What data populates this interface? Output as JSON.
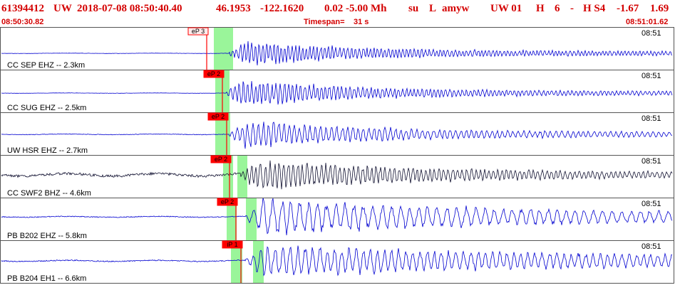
{
  "header": {
    "event_id": "61394412",
    "network": "UW",
    "origin_time": "2018-07-08 08:50:40.40",
    "latitude": "46.1953",
    "longitude": "-122.1620",
    "magnitude_info": "0.02 -5.00 Mh",
    "quality": "su",
    "type": "L",
    "author": "amyw",
    "version_info": "UW 01",
    "flag_h": "H",
    "count": "6",
    "dash": "-",
    "source": "H S4",
    "value1": "-1.67",
    "value2": "1.69"
  },
  "subheader": {
    "start_time": "08:50:30.82",
    "timespan_label": "Timespan=",
    "timespan_value": "31 s",
    "end_time": "08:51:01.62"
  },
  "colors": {
    "header_red": "#d40000",
    "trace_blue": "#0000d0",
    "trace_black": "#101030",
    "pick_red": "#ff0000",
    "window_green": "#9af59a",
    "frame_gray": "#555555"
  },
  "channels": [
    {
      "label": "CC SEP EHZ -- 2.3km",
      "time": "08:51",
      "pick": "eP 3",
      "pick_style": "outline",
      "trace_color": "blue"
    },
    {
      "label": "CC SUG EHZ -- 2.5km",
      "time": "08:51",
      "pick": "eP 2",
      "pick_style": "filled",
      "trace_color": "blue"
    },
    {
      "label": "UW HSR EHZ -- 2.7km",
      "time": "08:51",
      "pick": "eP 2",
      "pick_style": "filled",
      "trace_color": "blue"
    },
    {
      "label": "CC SWF2 BHZ -- 4.6km",
      "time": "08:51",
      "pick": "eP 2",
      "pick_style": "filled",
      "trace_color": "black"
    },
    {
      "label": "PB B202 EHZ -- 5.8km",
      "time": "08:51",
      "pick": "eP 2",
      "pick_style": "filled",
      "trace_color": "blue"
    },
    {
      "label": "PB B204 EH1 -- 6.6km",
      "time": "08:51",
      "pick": "iP 1",
      "pick_style": "filled",
      "trace_color": "blue"
    }
  ]
}
